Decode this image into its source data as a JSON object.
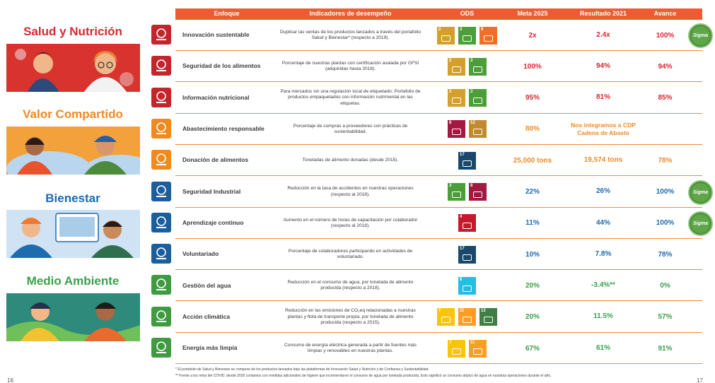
{
  "pillars": [
    {
      "name": "Salud y Nutrición",
      "color": "#d8282f"
    },
    {
      "name": "Valor Compartido",
      "color": "#f08a24"
    },
    {
      "name": "Bienestar",
      "color": "#1e6bb0"
    },
    {
      "name": "Medio Ambiente",
      "color": "#3aa04a"
    }
  ],
  "table": {
    "headers": {
      "focus": "Enfoque",
      "indicator": "Indicadores de desempeño",
      "ods": "ODS",
      "goal": "Meta 2025",
      "result": "Resultado 2021",
      "progress": "Avance"
    },
    "rows": [
      {
        "focus": "Innovación sustentable",
        "indicator": "Duplicar las ventas de los productos lanzados a través del portafolio Salud y Bienestar* (respecto a 2019).",
        "goal": "2x",
        "result": "2.4x",
        "progress": "100%",
        "color": "#d8282f",
        "icon_color": "#c4252d",
        "badge": "Sigma",
        "sdgs": [
          {
            "n": "2",
            "c": "#d3a029"
          },
          {
            "n": "3",
            "c": "#4c9f38"
          },
          {
            "n": "9",
            "c": "#f36d25"
          }
        ]
      },
      {
        "focus": "Seguridad de los alimentos",
        "indicator": "Porcentaje de nuestras plantas con certificación avalada por GFSI (adquiridas hasta 2018).",
        "goal": "100%",
        "result": "94%",
        "progress": "94%",
        "color": "#d8282f",
        "icon_color": "#c4252d",
        "sdgs": [
          {
            "n": "2",
            "c": "#d3a029"
          },
          {
            "n": "3",
            "c": "#4c9f38"
          }
        ]
      },
      {
        "focus": "Información nutricional",
        "indicator": "Para mercados sin una regulación local de etiquetado: Portafolio de productos empaquetados con información nutrimental en las etiquetas.",
        "goal": "95%",
        "result": "81%",
        "progress": "85%",
        "color": "#d8282f",
        "icon_color": "#c4252d",
        "sdgs": [
          {
            "n": "2",
            "c": "#d3a029"
          },
          {
            "n": "3",
            "c": "#4c9f38"
          }
        ]
      },
      {
        "focus": "Abastecimiento responsable",
        "indicator": "Porcentaje de compras a proveedores con prácticas de sustentabilidad.",
        "goal": "80%",
        "result": "Nos integramos a CDP Cadena de Abasto",
        "progress": "",
        "color": "#f08a24",
        "icon_color": "#ef8a1e",
        "sdgs": [
          {
            "n": "8",
            "c": "#a21942"
          },
          {
            "n": "12",
            "c": "#bf8b2e"
          }
        ]
      },
      {
        "focus": "Donación de alimentos",
        "indicator": "Toneladas de alimento donadas (desde 2015).",
        "goal": "25,000 tons",
        "result": "19,574 tons",
        "progress": "78%",
        "color": "#f08a24",
        "icon_color": "#ef8a1e",
        "sdgs": [
          {
            "n": "17",
            "c": "#19486a"
          }
        ]
      },
      {
        "focus": "Seguridad Industrial",
        "indicator": "Reducción en la tasa de accidentes en nuestras operaciones (respecto al 2018).",
        "goal": "22%",
        "result": "26%",
        "progress": "100%",
        "color": "#1e6bb0",
        "icon_color": "#1b5e9e",
        "badge": "Sigma",
        "sdgs": [
          {
            "n": "3",
            "c": "#4c9f38"
          },
          {
            "n": "8",
            "c": "#a21942"
          }
        ]
      },
      {
        "focus": "Aprendizaje continuo",
        "indicator": "Aumento en el número de horas de capacitación por colaborador (respecto al 2018).",
        "goal": "11%",
        "result": "44%",
        "progress": "100%",
        "color": "#1e6bb0",
        "icon_color": "#1b5e9e",
        "badge": "Sigma",
        "sdgs": [
          {
            "n": "4",
            "c": "#c5192d"
          }
        ]
      },
      {
        "focus": "Voluntariado",
        "indicator": "Porcentaje de colaboradores participando en actividades de voluntariado.",
        "goal": "10%",
        "result": "7.8%",
        "progress": "78%",
        "color": "#1e6bb0",
        "icon_color": "#1b5e9e",
        "sdgs": [
          {
            "n": "17",
            "c": "#19486a"
          }
        ]
      },
      {
        "focus": "Gestión del agua",
        "indicator": "Reducción en el consumo de agua, por tonelada de alimento producida (respecto a 2018).",
        "goal": "20%",
        "result": "-3.4%**",
        "progress": "0%",
        "color": "#3aa04a",
        "icon_color": "#3f9a42",
        "sdgs": [
          {
            "n": "6",
            "c": "#26bde2"
          }
        ]
      },
      {
        "focus": "Acción climática",
        "indicator": "Reducción en las emisiones de CO₂eq relacionadas a nuestras plantas y flota de transporte propia, por tonelada de alimento producida (respecto a 2015).",
        "goal": "20%",
        "result": "11.5%",
        "progress": "57%",
        "color": "#3aa04a",
        "icon_color": "#3f9a42",
        "sdgs": [
          {
            "n": "7",
            "c": "#fcc30b"
          },
          {
            "n": "11",
            "c": "#fd9d24"
          },
          {
            "n": "13",
            "c": "#3f7e44"
          }
        ]
      },
      {
        "focus": "Energía más limpia",
        "indicator": "Consumo de energía eléctrica generada a partir de fuentes más limpias y renovables en nuestras plantas.",
        "goal": "67%",
        "result": "61%",
        "progress": "91%",
        "color": "#3aa04a",
        "icon_color": "#3f9a42",
        "sdgs": [
          {
            "n": "7",
            "c": "#fcc30b"
          },
          {
            "n": "11",
            "c": "#fd9d24"
          }
        ]
      }
    ]
  },
  "footnotes": [
    "* El portafolio de Salud y Bienestar se compone de los productos lanzados bajo las plataformas de Innovación Salud y Nutrición y de Confianza y Sustentabilidad.",
    "** Frente a los retos del COVID, desde 2020 contamos con medidas adicionales de higiene que incrementaron el consumo de agua por tonelada producida. Esto significó un consumo atípico de agua en nuestras operaciones durante el año."
  ],
  "page_numbers": {
    "left": "16",
    "right": "17"
  }
}
